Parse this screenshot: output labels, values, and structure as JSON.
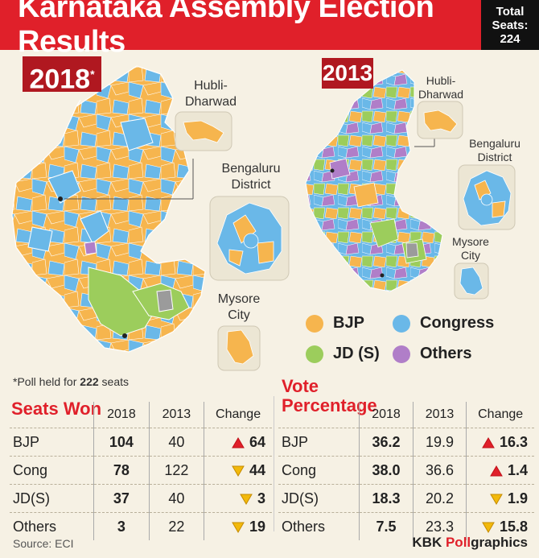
{
  "header": {
    "title": "Karnataka Assembly Election Results",
    "total_label": "Total",
    "seats_label": "Seats:",
    "total_value": "224"
  },
  "maps": {
    "badge_2018": "2018",
    "badge_2018_mark": "*",
    "badge_2013": "2013",
    "inset_hubli": "Hubli-\nDharwad",
    "inset_bengaluru": "Bengaluru\nDistrict",
    "inset_mysore": "Mysore\nCity"
  },
  "legend": {
    "bjp": "BJP",
    "congress": "Congress",
    "jds": "JD (S)",
    "others": "Others"
  },
  "colors": {
    "bjp": "#f6b54e",
    "congress": "#6ab8e8",
    "jds": "#9ccd5c",
    "others": "#b07ec8",
    "header_red": "#e0202a",
    "badge_red": "#b01820",
    "up_triangle": "#e0202a",
    "down_triangle": "#f2b90b"
  },
  "footnote": {
    "prefix": "*Poll held for ",
    "count": "222",
    "suffix": " seats"
  },
  "seats_won": {
    "title": "Seats Won",
    "headers": [
      "2018",
      "2013",
      "Change"
    ],
    "rows": [
      {
        "party": "BJP",
        "y2018": "104",
        "y2013": "40",
        "change": "64",
        "direction": "up"
      },
      {
        "party": "Cong",
        "y2018": "78",
        "y2013": "122",
        "change": "44",
        "direction": "down"
      },
      {
        "party": "JD(S)",
        "y2018": "37",
        "y2013": "40",
        "change": "3",
        "direction": "down"
      },
      {
        "party": "Others",
        "y2018": "3",
        "y2013": "22",
        "change": "19",
        "direction": "down"
      }
    ]
  },
  "vote_percentage": {
    "title_line1": "Vote",
    "title_line2": "Percentage",
    "headers": [
      "2018",
      "2013",
      "Change"
    ],
    "rows": [
      {
        "party": "BJP",
        "y2018": "36.2",
        "y2013": "19.9",
        "change": "16.3",
        "direction": "up"
      },
      {
        "party": "Cong",
        "y2018": "38.0",
        "y2013": "36.6",
        "change": "1.4",
        "direction": "up"
      },
      {
        "party": "JD(S)",
        "y2018": "18.3",
        "y2013": "20.2",
        "change": "1.9",
        "direction": "down"
      },
      {
        "party": "Others",
        "y2018": "7.5",
        "y2013": "23.3",
        "change": "15.8",
        "direction": "down"
      }
    ]
  },
  "source": "Source: ECI",
  "credit": {
    "brand": "KBK ",
    "poll": "Poll",
    "suffix": "graphics"
  }
}
